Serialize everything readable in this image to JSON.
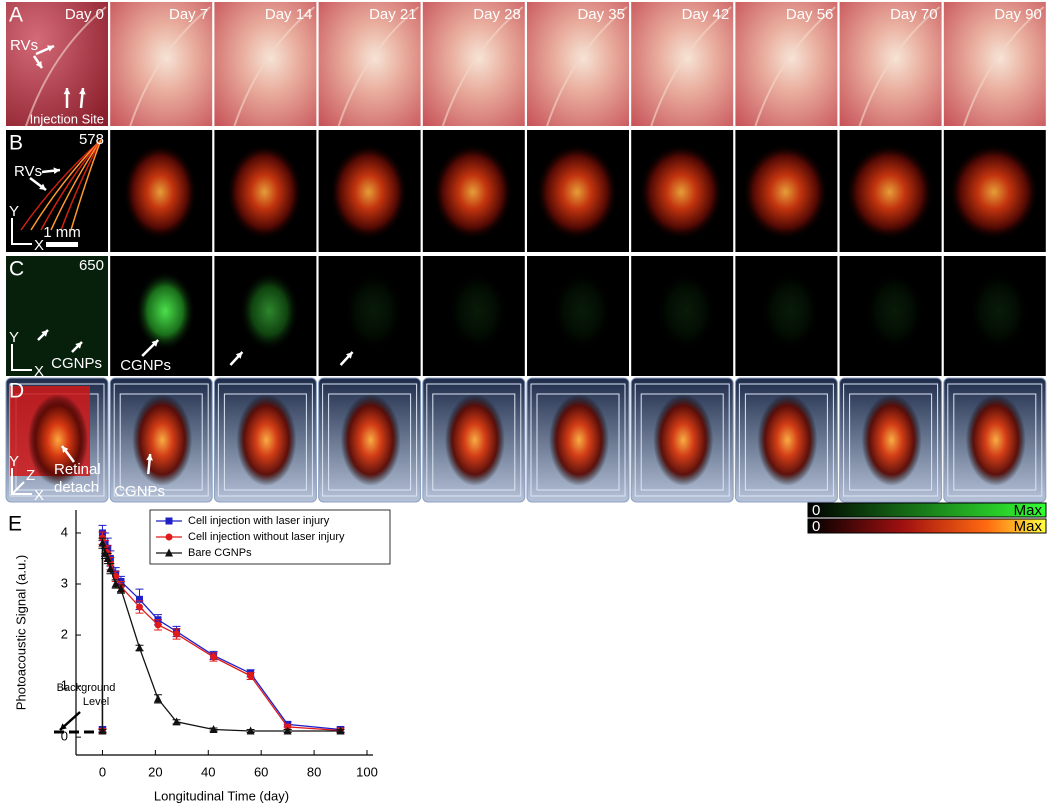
{
  "figure": {
    "day_labels": [
      "Day 0",
      "Day 7",
      "Day 14",
      "Day 21",
      "Day 28",
      "Day 35",
      "Day 42",
      "Day 56",
      "Day 70",
      "Day 90"
    ],
    "panel_a": {
      "label": "A",
      "rvs": "RVs",
      "injection_site": "Injection Site"
    },
    "panel_b": {
      "label": "B",
      "wavelength": 578,
      "rvs": "RVs",
      "scale_bar": "1 mm",
      "axis_y": "Y",
      "axis_x": "X"
    },
    "panel_c": {
      "label": "C",
      "wavelength": 650,
      "cgnps": "CGNPs",
      "cgnps_day7": "CGNPs",
      "axis_y": "Y",
      "axis_x": "X"
    },
    "panel_d": {
      "label": "D",
      "axis_y": "Y",
      "axis_z": "Z",
      "axis_x": "X",
      "retinal_detach": [
        "Retinal",
        "detach"
      ],
      "cgnps": "CGNPs"
    },
    "colorbars": [
      {
        "min": "0",
        "max": "Max"
      },
      {
        "min": "0",
        "max": "Max"
      }
    ]
  },
  "chart_data": {
    "type": "line",
    "panel_label": "E",
    "x_label": "Longitudinal Time (day)",
    "y_label": "Photoacoustic Signal (a.u.)",
    "annotation": [
      "Background",
      "Level"
    ],
    "background_level": 0.1,
    "x": [
      0,
      0,
      1,
      2,
      3,
      5,
      7,
      14,
      21,
      28,
      42,
      56,
      70,
      90
    ],
    "series": [
      {
        "name": "Cell injection with laser injury",
        "color": "#1f1fc8",
        "marker": "square",
        "values": [
          0.15,
          4.0,
          3.8,
          3.7,
          3.5,
          3.2,
          3.05,
          2.7,
          2.3,
          2.07,
          1.6,
          1.25,
          0.25,
          0.15
        ],
        "errors": [
          0.05,
          0.15,
          0.2,
          0.2,
          0.15,
          0.12,
          0.1,
          0.2,
          0.1,
          0.1,
          0.08,
          0.07,
          0.05,
          0.05
        ]
      },
      {
        "name": "Cell injection without laser injury",
        "color": "#e01a1a",
        "marker": "circle",
        "values": [
          0.12,
          3.9,
          3.7,
          3.6,
          3.4,
          3.15,
          2.95,
          2.55,
          2.2,
          2.02,
          1.57,
          1.2,
          0.2,
          0.13
        ],
        "errors": [
          0.05,
          0.12,
          0.15,
          0.15,
          0.12,
          0.1,
          0.1,
          0.12,
          0.1,
          0.1,
          0.08,
          0.07,
          0.05,
          0.05
        ]
      },
      {
        "name": "Bare CGNPs",
        "color": "#111111",
        "marker": "triangle",
        "values": [
          0.12,
          3.8,
          3.6,
          3.5,
          3.3,
          3.0,
          2.9,
          1.75,
          0.75,
          0.3,
          0.15,
          0.12,
          0.12,
          0.12
        ],
        "errors": [
          0.03,
          0.1,
          0.1,
          0.1,
          0.1,
          0.08,
          0.08,
          0.05,
          0.08,
          0.04,
          0.03,
          0.03,
          0.03,
          0.03
        ]
      }
    ],
    "xlim": [
      -10,
      100
    ],
    "ylim": [
      -0.35,
      4.45
    ],
    "xticks": [
      0,
      20,
      40,
      60,
      80,
      100
    ],
    "yticks": [
      0,
      1,
      2,
      3,
      4
    ]
  }
}
